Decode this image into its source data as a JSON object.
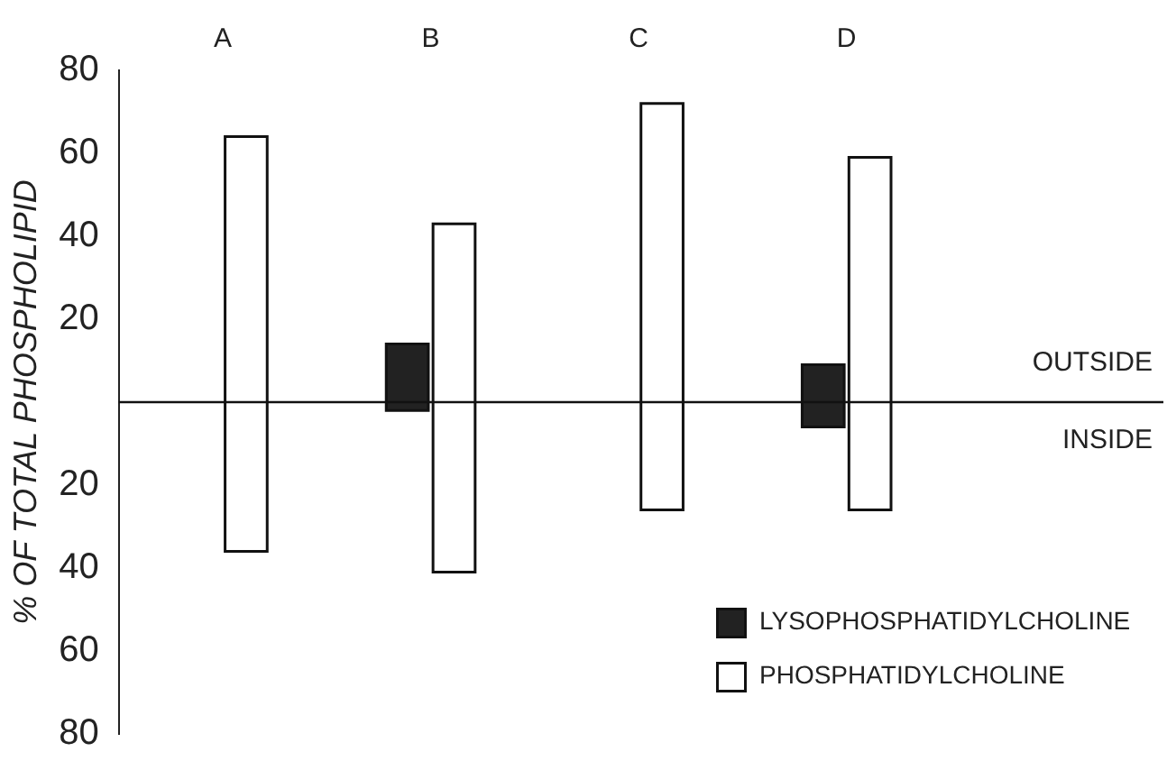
{
  "chart_data": {
    "type": "bar",
    "categories": [
      "A",
      "B",
      "C",
      "D"
    ],
    "ylabel": "% OF TOTAL PHOSPHOLIPID",
    "series": [
      {
        "name": "LYSOPHOSPHATIDYLCHOLINE",
        "color": "#222222",
        "base": [
          null,
          -2,
          null,
          -6
        ],
        "values": [
          null,
          16,
          null,
          15
        ]
      },
      {
        "name": "PHOSPHATIDYLCHOLINE",
        "color": "#ffffff",
        "base": [
          -36,
          -41,
          -26,
          -26
        ],
        "values": [
          100,
          84,
          98,
          85
        ]
      }
    ],
    "ylim": [
      -80,
      80
    ],
    "yticks": [
      {
        "value": -80,
        "label": "80"
      },
      {
        "value": -60,
        "label": "60"
      },
      {
        "value": -40,
        "label": "40"
      },
      {
        "value": -20,
        "label": "20"
      },
      20,
      40,
      60,
      80
    ],
    "ref_lines": [
      {
        "axis": "y",
        "value": 0
      }
    ],
    "annotations": [
      "OUTSIDE",
      "INSIDE"
    ],
    "grid": false,
    "legend": "bottom right"
  }
}
